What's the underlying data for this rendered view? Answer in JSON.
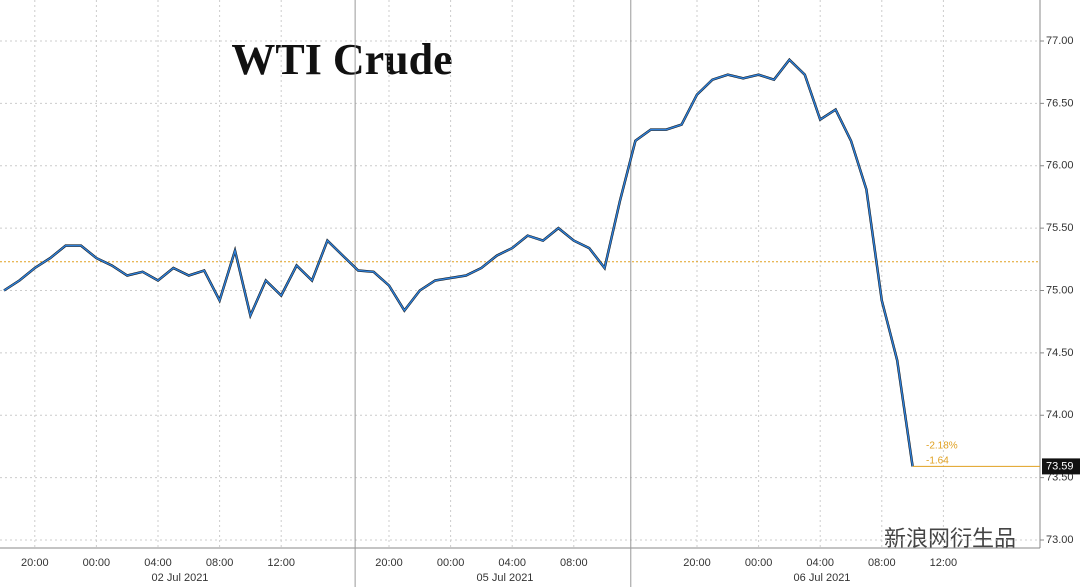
{
  "chart_data": {
    "type": "line",
    "title": "WTI Crude",
    "categories": [
      null,
      null,
      "20:00",
      null,
      null,
      null,
      "00:00",
      null,
      null,
      null,
      "04:00",
      null,
      null,
      null,
      "08:00",
      null,
      null,
      null,
      "12:00",
      null,
      null,
      null,
      null,
      null,
      null,
      "20:00",
      null,
      null,
      null,
      "00:00",
      null,
      null,
      null,
      "04:00",
      null,
      null,
      null,
      "08:00",
      null,
      null,
      null,
      null,
      null,
      null,
      null,
      "20:00",
      null,
      null,
      null,
      "00:00",
      null,
      null,
      null,
      "04:00",
      null,
      null,
      null,
      "08:00",
      null,
      null,
      null,
      "12:00"
    ],
    "date_labels": [
      "02 Jul 2021",
      "05 Jul 2021",
      "06 Jul 2021"
    ],
    "series": [
      {
        "color": "#2f7fd6",
        "values": [
          75.0,
          75.08,
          75.18,
          75.26,
          75.36,
          75.36,
          75.26,
          75.2,
          75.12,
          75.15,
          75.08,
          75.18,
          75.12,
          75.16,
          74.92,
          75.32,
          74.8,
          75.08,
          74.96,
          75.2,
          75.08,
          75.4,
          75.28,
          75.16,
          75.15,
          75.04,
          74.84,
          75.0,
          75.08,
          75.1,
          75.12,
          75.18,
          75.28,
          75.34,
          75.44,
          75.4,
          75.5,
          75.4,
          75.34,
          75.18,
          75.72,
          76.2,
          76.29,
          76.29,
          76.33,
          76.57,
          76.69,
          76.73,
          76.7,
          76.73,
          76.69,
          76.85,
          76.73,
          76.37,
          76.45,
          76.2,
          75.81,
          74.92,
          74.44,
          73.59,
          null,
          null
        ]
      }
    ],
    "ylim": [
      73.0,
      77.0
    ],
    "yticks": [
      {
        "value": 73.0,
        "label": "73.00"
      },
      {
        "value": 73.5,
        "label": "73.50"
      },
      {
        "value": 74.0,
        "label": "74.00"
      },
      {
        "value": 74.5,
        "label": "74.50"
      },
      {
        "value": 75.0,
        "label": "75.00"
      },
      {
        "value": 75.5,
        "label": "75.50"
      },
      {
        "value": 76.0,
        "label": "76.00"
      },
      {
        "value": 76.5,
        "label": "76.50"
      },
      {
        "value": 77.0,
        "label": "77.00"
      }
    ],
    "reference_line": {
      "value": 75.23,
      "color": "#e0a020"
    },
    "last_value": {
      "value": 73.59,
      "label": "73.59"
    },
    "annotations": [
      "-2.18%",
      "-1.64"
    ],
    "watermark": "新浪网衍生品",
    "grid": true
  }
}
